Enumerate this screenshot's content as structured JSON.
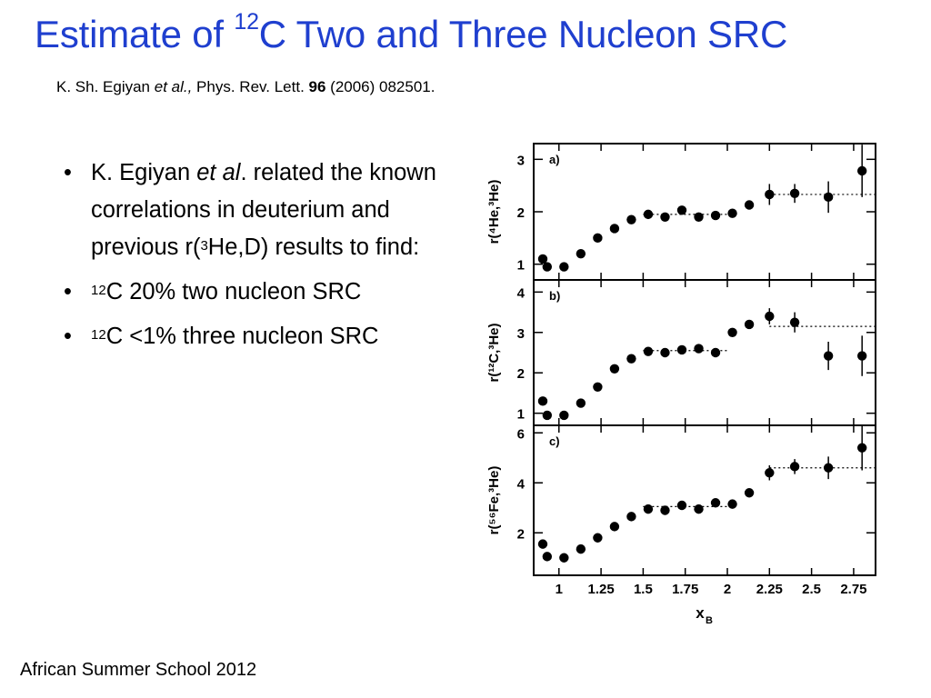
{
  "slide": {
    "title_pre": "Estimate of ",
    "title_sup": "12",
    "title_post": "C Two and Three Nucleon SRC",
    "citation": {
      "authors": "K. Sh. Egiyan ",
      "etal": "et al.,",
      "journal": " Phys. Rev. Lett.  ",
      "volume": "96",
      "rest": " (2006) 082501."
    },
    "bullets": [
      {
        "symbol": "•",
        "pre": "K. Egiyan ",
        "em": "et al",
        "post": ". related the known correlations in deuterium and previous r(",
        "sup": "3",
        "tail": "He,D) results to find:"
      },
      {
        "symbol": "•",
        "sup": "12",
        "text": "C 20% two nucleon SRC"
      },
      {
        "symbol": "•",
        "sup": "12",
        "text": "C <1% three nucleon SRC"
      }
    ],
    "footer": "African Summer School 2012"
  },
  "chart_data": {
    "type": "scatter",
    "xlabel": "x",
    "xlabel_sub": "B",
    "xticks": [
      "1",
      "1.25",
      "1.5",
      "1.75",
      "2",
      "2.25",
      "2.5",
      "2.75"
    ],
    "xlim": [
      0.85,
      2.88
    ],
    "panels": [
      {
        "label": "a)",
        "ylabel": "r(⁴He,³He)",
        "ylim": [
          0.7,
          3.3
        ],
        "yticks": [
          1,
          2,
          3
        ],
        "x": [
          0.83,
          0.93,
          1.03,
          1.13,
          1.23,
          1.33,
          1.43,
          1.53,
          1.63,
          1.73,
          1.83,
          1.93,
          2.03,
          2.13,
          2.25,
          2.4,
          2.6,
          2.8
        ],
        "y": [
          1.1,
          0.95,
          0.95,
          1.2,
          1.5,
          1.68,
          1.85,
          1.95,
          1.9,
          2.03,
          1.9,
          1.93,
          1.97,
          2.13,
          2.33,
          2.35,
          2.28,
          2.78
        ],
        "err": [
          0,
          0,
          0,
          0,
          0,
          0,
          0,
          0,
          0,
          0,
          0,
          0,
          0,
          0,
          0.2,
          0.18,
          0.3,
          0.5
        ],
        "levels": [
          {
            "value": 1.95,
            "from": 1.5,
            "to": 2.0
          },
          {
            "value": 2.33,
            "from": 2.25,
            "to": 2.88
          }
        ]
      },
      {
        "label": "b)",
        "ylabel": "r(¹²C,³He)",
        "ylim": [
          0.7,
          4.3
        ],
        "yticks": [
          1,
          2,
          3,
          4
        ],
        "x": [
          0.83,
          0.93,
          1.03,
          1.13,
          1.23,
          1.33,
          1.43,
          1.53,
          1.63,
          1.73,
          1.83,
          1.93,
          2.03,
          2.13,
          2.25,
          2.4,
          2.6,
          2.8
        ],
        "y": [
          1.3,
          0.95,
          0.95,
          1.25,
          1.65,
          2.1,
          2.35,
          2.53,
          2.5,
          2.57,
          2.6,
          2.5,
          3.0,
          3.2,
          3.4,
          3.25,
          2.42,
          2.42
        ],
        "err": [
          0,
          0,
          0,
          0,
          0,
          0,
          0,
          0,
          0,
          0,
          0,
          0,
          0,
          0,
          0.2,
          0.25,
          0.35,
          0.5
        ],
        "levels": [
          {
            "value": 2.55,
            "from": 1.5,
            "to": 2.0
          },
          {
            "value": 3.15,
            "from": 2.25,
            "to": 2.88
          }
        ]
      },
      {
        "label": "c)",
        "ylabel": "r(⁵⁶Fe,³He)",
        "ylim": [
          0.3,
          6.3
        ],
        "yticks": [
          2,
          4,
          6
        ],
        "x": [
          0.83,
          0.93,
          1.03,
          1.13,
          1.23,
          1.33,
          1.43,
          1.53,
          1.63,
          1.73,
          1.83,
          1.93,
          2.03,
          2.13,
          2.25,
          2.4,
          2.6,
          2.8
        ],
        "y": [
          1.55,
          1.05,
          1.0,
          1.35,
          1.8,
          2.25,
          2.65,
          2.95,
          2.9,
          3.1,
          2.95,
          3.2,
          3.15,
          3.6,
          4.4,
          4.65,
          4.6,
          5.4
        ],
        "err": [
          0,
          0,
          0,
          0,
          0,
          0,
          0,
          0,
          0,
          0,
          0,
          0,
          0,
          0,
          0.3,
          0.3,
          0.45,
          0.9
        ],
        "levels": [
          {
            "value": 3.05,
            "from": 1.5,
            "to": 2.0
          },
          {
            "value": 4.6,
            "from": 2.25,
            "to": 2.88
          }
        ]
      }
    ]
  }
}
